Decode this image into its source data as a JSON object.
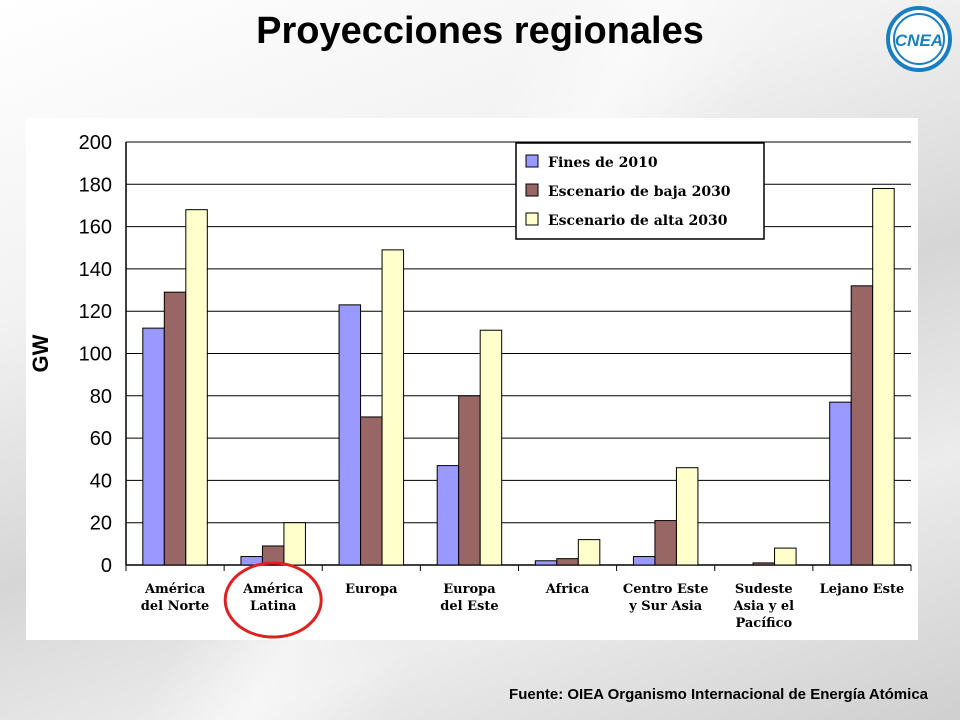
{
  "slide": {
    "title": "Proyecciones regionales",
    "source": "Fuente: OIEA Organismo Internacional de Energía Atómica",
    "logo_text": "CNEA"
  },
  "colors": {
    "series": [
      "#9999ff",
      "#996666",
      "#ffffcc"
    ],
    "highlight_circle": "#e02020",
    "logo_blue": "#1a7fc0"
  },
  "chart_data": {
    "type": "bar",
    "ylabel": "GW",
    "ylim": [
      0,
      200
    ],
    "yticks": [
      0,
      20,
      40,
      60,
      80,
      100,
      120,
      140,
      160,
      180,
      200
    ],
    "grid": true,
    "legend_position": "top-center",
    "categories": [
      [
        "América",
        "del Norte"
      ],
      [
        "América",
        "Latina"
      ],
      [
        "Europa"
      ],
      [
        "Europa",
        "del Este"
      ],
      [
        "Africa"
      ],
      [
        "Centro Este",
        "y Sur Asia"
      ],
      [
        "Sudeste",
        "Asia y el",
        "Pacífico"
      ],
      [
        "Lejano Este"
      ]
    ],
    "highlighted_category_index": 1,
    "series": [
      {
        "name": "Fines de 2010",
        "values": [
          112,
          4,
          123,
          47,
          2,
          4,
          0,
          77
        ]
      },
      {
        "name": "Escenario de baja 2030",
        "values": [
          129,
          9,
          70,
          80,
          3,
          21,
          1,
          132
        ]
      },
      {
        "name": "Escenario de alta 2030",
        "values": [
          168,
          20,
          149,
          111,
          12,
          46,
          8,
          178
        ]
      }
    ]
  }
}
